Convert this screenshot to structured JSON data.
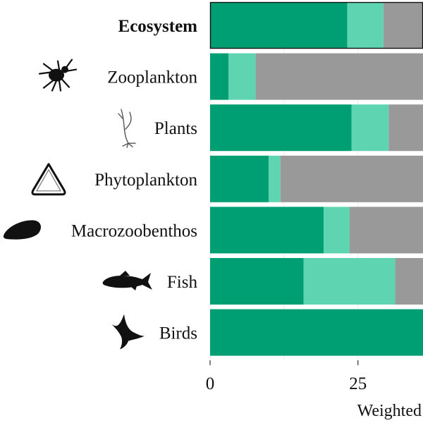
{
  "chart_data": {
    "type": "bar",
    "orientation": "horizontal",
    "stacked": true,
    "categories": [
      "Ecosystem",
      "Zooplankton",
      "Plants",
      "Phytoplankton",
      "Macrozoobenthos",
      "Fish",
      "Birds"
    ],
    "category_icons": [
      "",
      "zooplankton-icon",
      "plant-icon",
      "phytoplankton-icon",
      "mussel-icon",
      "fish-icon",
      "bird-icon"
    ],
    "highlighted_category": "Ecosystem",
    "series": [
      {
        "values": [
          23.2,
          3.1,
          23.9,
          9.9,
          19.2,
          15.8,
          36.0
        ]
      },
      {
        "values": [
          6.1,
          4.6,
          6.3,
          2.0,
          4.4,
          15.5,
          0.0
        ]
      },
      {
        "values": [
          6.7,
          28.3,
          5.8,
          24.1,
          12.4,
          4.7,
          0.0
        ]
      }
    ],
    "colors": [
      "#009e73",
      "#5fd4b0",
      "#999999"
    ],
    "xlim": [
      0,
      36
    ],
    "xticks": [
      0,
      25
    ],
    "xlabel": "Weighted",
    "ylabel": "",
    "title": "",
    "grid": true,
    "legend": "none"
  }
}
